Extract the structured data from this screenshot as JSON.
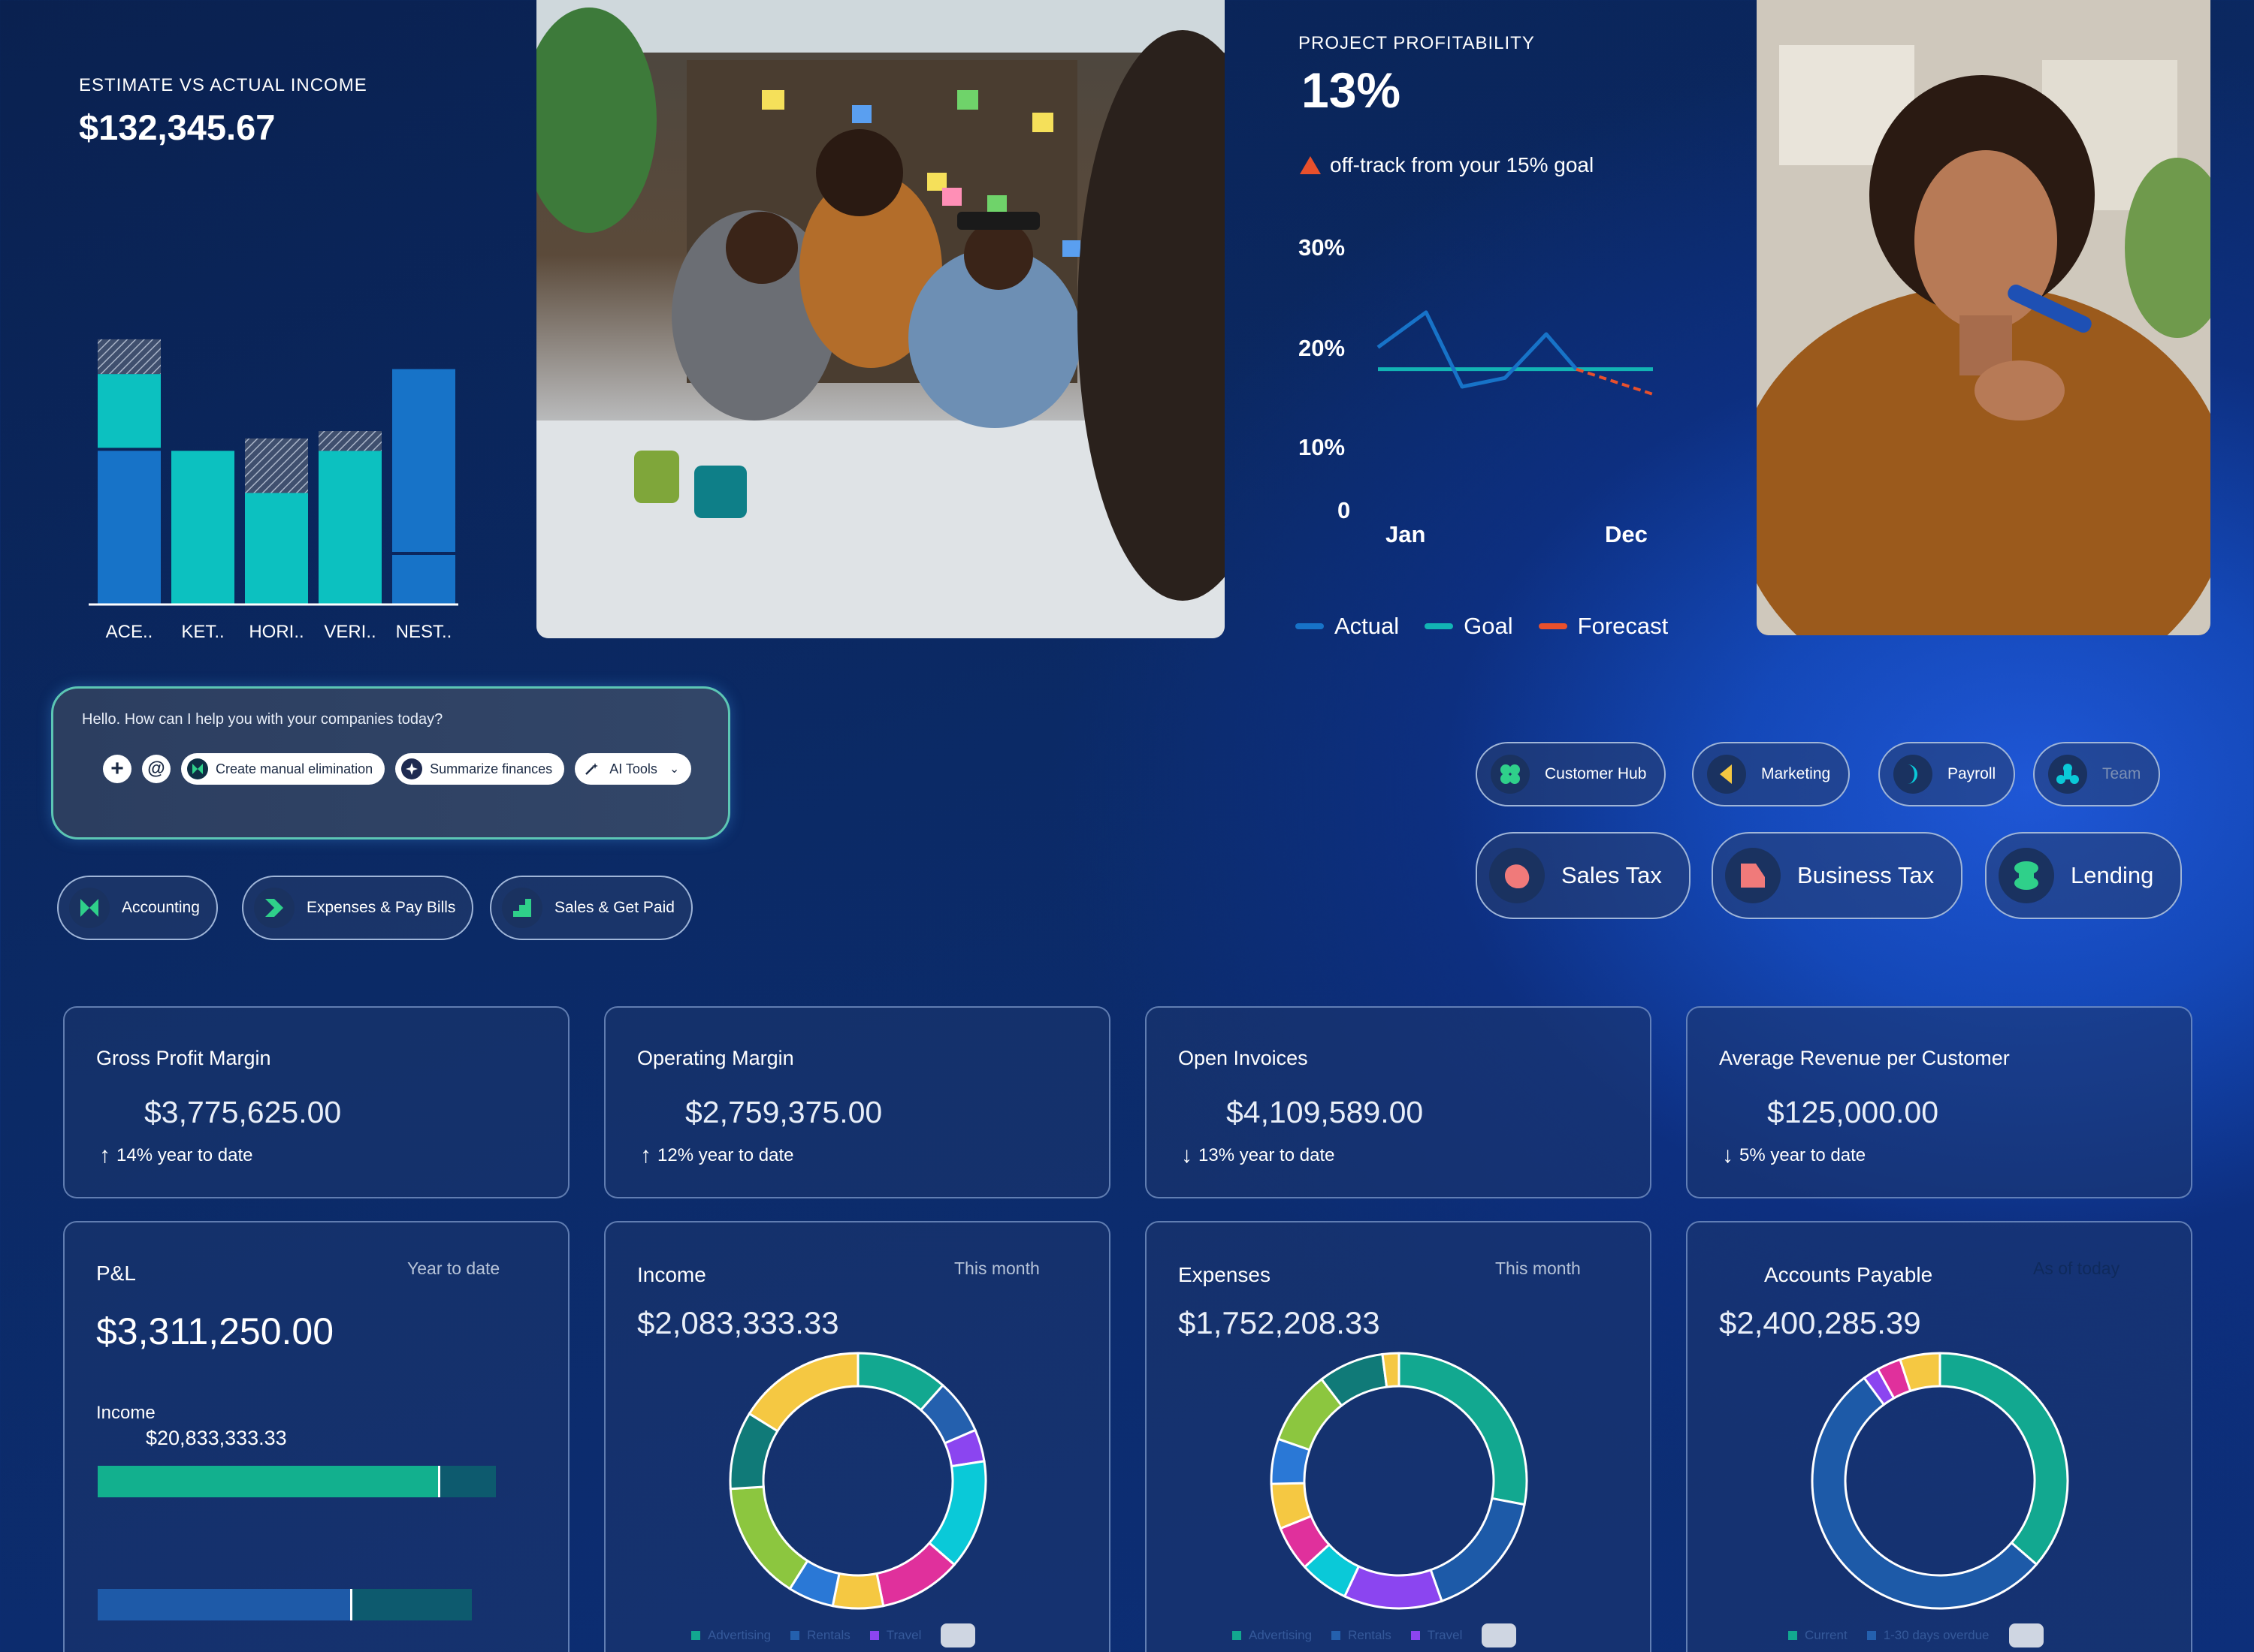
{
  "estimate": {
    "title": "ESTIMATE VS ACTUAL INCOME",
    "value": "$132,345.67"
  },
  "chart_data": [
    {
      "type": "bar",
      "title": "ESTIMATE VS ACTUAL INCOME",
      "categories": [
        "ACE..",
        "KET..",
        "HORI..",
        "VERI..",
        "NEST.."
      ],
      "series": [],
      "stacks": [
        {
          "actual": 62,
          "estimate_extra": 31,
          "hatched_top": 14
        },
        {
          "actual": 62,
          "estimate_extra": 0,
          "hatched_top": 0
        },
        {
          "actual": 45,
          "estimate_extra": 0,
          "hatched_top": 22
        },
        {
          "actual": 62,
          "estimate_extra": 0,
          "hatched_top": 8
        },
        {
          "actual": 20,
          "estimate_extra": 75,
          "hatched_top": 0
        }
      ],
      "colors": {
        "blue": "#1773c8",
        "teal": "#0cc1c0",
        "hatch": "#8a97ae"
      }
    },
    {
      "type": "line",
      "title": "PROJECT PROFITABILITY",
      "x_labels": [
        "Jan",
        "Dec"
      ],
      "y_ticks": [
        "30%",
        "20%",
        "10%",
        "0"
      ],
      "ylim": [
        0,
        30
      ],
      "series": [
        {
          "name": "Actual",
          "color": "#1773c8",
          "values": [
            19.5,
            23.5,
            15,
            16,
            21,
            17
          ]
        },
        {
          "name": "Goal",
          "color": "#12b4b4",
          "values": [
            17,
            17,
            17,
            17,
            17,
            17
          ]
        },
        {
          "name": "Forecast",
          "color": "#e8502c",
          "values": [
            17,
            15
          ]
        }
      ]
    },
    {
      "type": "pie",
      "title": "Income",
      "slices": [
        {
          "value": 10,
          "color": "#12a890"
        },
        {
          "value": 6,
          "color": "#2460ae"
        },
        {
          "value": 3.5,
          "color": "#8b45f0"
        },
        {
          "value": 12,
          "color": "#0ac9d8"
        },
        {
          "value": 9,
          "color": "#e0309c"
        },
        {
          "value": 5.5,
          "color": "#f5c842"
        },
        {
          "value": 5,
          "color": "#2a78d6"
        },
        {
          "value": 13,
          "color": "#8cc63f"
        },
        {
          "value": 8.5,
          "color": "#107a78"
        },
        {
          "value": 14,
          "color": "#f5c842"
        }
      ]
    },
    {
      "type": "pie",
      "title": "Expenses",
      "slices": [
        {
          "value": 27,
          "color": "#12a890"
        },
        {
          "value": 16,
          "color": "#1d5aa8"
        },
        {
          "value": 12,
          "color": "#8b45f0"
        },
        {
          "value": 6,
          "color": "#0ac9d8"
        },
        {
          "value": 5.5,
          "color": "#e0309c"
        },
        {
          "value": 5.5,
          "color": "#f5c842"
        },
        {
          "value": 5.5,
          "color": "#2a78d6"
        },
        {
          "value": 9,
          "color": "#8cc63f"
        },
        {
          "value": 8,
          "color": "#107a78"
        },
        {
          "value": 2,
          "color": "#f5c842"
        }
      ]
    },
    {
      "type": "pie",
      "title": "Accounts Payable",
      "slices": [
        {
          "value": 36,
          "color": "#12a890"
        },
        {
          "value": 53,
          "color": "#1d5aa8"
        },
        {
          "value": 2,
          "color": "#8b45f0"
        },
        {
          "value": 3,
          "color": "#e0309c"
        },
        {
          "value": 5,
          "color": "#f5c842"
        }
      ]
    }
  ],
  "profitability": {
    "title": "PROJECT PROFITABILITY",
    "value": "13%",
    "warning": "off-track from your 15% goal",
    "legend": [
      "Actual",
      "Goal",
      "Forecast"
    ]
  },
  "assistant": {
    "greeting": "Hello. How can I help you with your companies today?",
    "chips": [
      "Create manual elimination",
      "Summarize finances",
      "AI Tools"
    ]
  },
  "quick_links": [
    "Accounting",
    "Expenses & Pay Bills",
    "Sales & Get Paid"
  ],
  "apps_small": [
    "Customer Hub",
    "Marketing",
    "Payroll",
    "Team"
  ],
  "apps_large": [
    "Sales Tax",
    "Business Tax",
    "Lending"
  ],
  "metrics": [
    {
      "label": "Gross Profit Margin",
      "value": "$3,775,625.00",
      "direction": "up",
      "change": "14% year to date"
    },
    {
      "label": "Operating Margin",
      "value": "$2,759,375.00",
      "direction": "up",
      "change": "12% year to date"
    },
    {
      "label": "Open Invoices",
      "value": "$4,109,589.00",
      "direction": "down",
      "change": "13% year to date"
    },
    {
      "label": "Average Revenue per Customer",
      "value": "$125,000.00",
      "direction": "down",
      "change": "5% year to date"
    }
  ],
  "pl": {
    "label": "P&L",
    "period": "Year to date",
    "value": "$3,311,250.00",
    "income_label": "Income",
    "income_value": "$20,833,333.33",
    "income_fill": 0.86,
    "expense_fill": 0.68
  },
  "income_card": {
    "label": "Income",
    "period": "This month",
    "value": "$2,083,333.33",
    "legend": [
      "Advertising",
      "Rentals",
      "Travel"
    ]
  },
  "expenses_card": {
    "label": "Expenses",
    "period": "This month",
    "value": "$1,752,208.33",
    "legend": [
      "Advertising",
      "Rentals",
      "Travel"
    ]
  },
  "ap_card": {
    "label": "Accounts Payable",
    "period": "As of today",
    "value": "$2,400,285.39",
    "legend": [
      "Current",
      "1-30 days overdue"
    ]
  }
}
